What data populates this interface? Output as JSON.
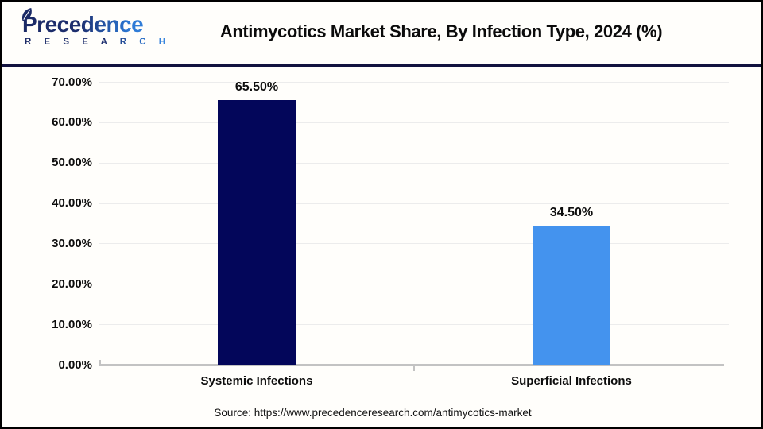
{
  "header": {
    "logo": {
      "brand": "Precedence",
      "sub": "R E S E A R C H"
    }
  },
  "chart_data": {
    "type": "bar",
    "title": "Antimycotics Market Share, By Infection Type, 2024 (%)",
    "categories": [
      "Systemic Infections",
      "Superficial Infections"
    ],
    "values": [
      65.5,
      34.5
    ],
    "value_labels": [
      "65.50%",
      "34.50%"
    ],
    "bar_colors": [
      "#03065a",
      "#4493ee"
    ],
    "ylim": [
      0,
      70
    ],
    "ytick_labels": [
      "70.00%",
      "60.00%",
      "50.00%",
      "40.00%",
      "30.00%",
      "20.00%",
      "10.00%",
      "0.00%"
    ],
    "grid": true,
    "legend_position": "none",
    "xlabel": "",
    "ylabel": ""
  },
  "footer": {
    "source": "Source: https://www.precedenceresearch.com/antimycotics-market"
  },
  "colors": {
    "bar_systemic": "#03065a",
    "bar_superficial": "#4493ee",
    "header_divider": "#12123f",
    "gridline": "#ececec",
    "axis_line": "#c3c3c3",
    "frame_border": "#000000"
  }
}
